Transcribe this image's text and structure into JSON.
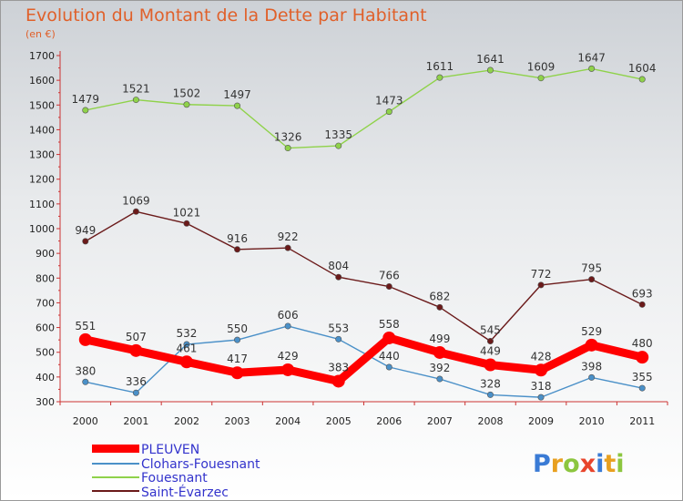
{
  "chart_data": {
    "type": "line",
    "title": "Evolution du Montant de la Dette par Habitant",
    "unit_label": "(en €)",
    "categories": [
      "2000",
      "2001",
      "2002",
      "2003",
      "2004",
      "2005",
      "2006",
      "2007",
      "2008",
      "2009",
      "2010",
      "2011"
    ],
    "ylim": [
      300,
      1700
    ],
    "yticks": [
      300,
      400,
      500,
      600,
      700,
      800,
      900,
      1000,
      1100,
      1200,
      1300,
      1400,
      1500,
      1600,
      1700
    ],
    "series": [
      {
        "name": "PLEUVEN",
        "color": "#ff0000",
        "values": [
          551,
          507,
          461,
          417,
          429,
          383,
          558,
          499,
          449,
          428,
          529,
          480
        ]
      },
      {
        "name": "Clohars-Fouesnant",
        "color": "#4a90c8",
        "values": [
          380,
          336,
          532,
          550,
          606,
          553,
          440,
          392,
          328,
          318,
          398,
          355
        ]
      },
      {
        "name": "Fouesnant",
        "color": "#8fd24a",
        "values": [
          1479,
          1521,
          1502,
          1497,
          1326,
          1335,
          1473,
          1611,
          1641,
          1609,
          1647,
          1604
        ]
      },
      {
        "name": "Saint-Évarzec",
        "color": "#6b1a1a",
        "values": [
          949,
          1069,
          1021,
          916,
          922,
          804,
          766,
          682,
          545,
          772,
          795,
          693
        ]
      }
    ],
    "legend_position": "bottom-left"
  },
  "logo": {
    "text": "Proxiti"
  }
}
